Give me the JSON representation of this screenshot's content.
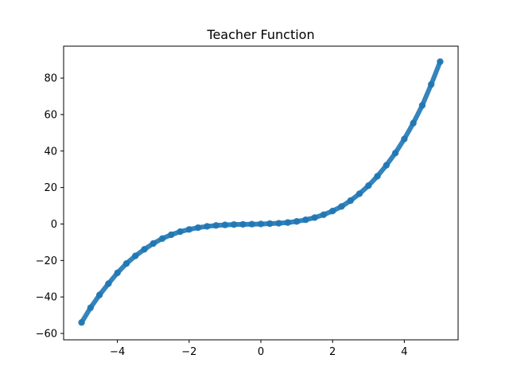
{
  "chart_data": {
    "type": "scatter",
    "title": "Teacher Function",
    "xlabel": "",
    "ylabel": "",
    "xlim": [
      -5.5,
      5.5
    ],
    "ylim": [
      -63.5,
      97.5
    ],
    "x_ticks": [
      -4,
      -2,
      0,
      2,
      4
    ],
    "y_ticks": [
      -60,
      -40,
      -20,
      0,
      20,
      40,
      60,
      80
    ],
    "x_tick_labels": [
      "−4",
      "−2",
      "0",
      "2",
      "4"
    ],
    "y_tick_labels": [
      "−60",
      "−40",
      "−20",
      "0",
      "20",
      "40",
      "60",
      "80"
    ],
    "grid": false,
    "legend": "none",
    "marker_color": "#1f77b4",
    "series": [
      {
        "x": [
          -5.0,
          -4.75,
          -4.5,
          -4.25,
          -4.0,
          -3.75,
          -3.5,
          -3.25,
          -3.0,
          -2.75,
          -2.5,
          -2.25,
          -2.0,
          -1.75,
          -1.5,
          -1.25,
          -1.0,
          -0.75,
          -0.5,
          -0.25,
          0.0,
          0.25,
          0.5,
          0.75,
          1.0,
          1.25,
          1.5,
          1.75,
          2.0,
          2.25,
          2.5,
          2.75,
          3.0,
          3.25,
          3.5,
          3.75,
          4.0,
          4.25,
          4.5,
          4.75,
          5.0
        ],
        "y": [
          -54.0,
          -45.9,
          -38.9,
          -32.7,
          -26.8,
          -21.7,
          -17.5,
          -13.9,
          -10.7,
          -8.0,
          -5.9,
          -4.2,
          -3.0,
          -2.0,
          -1.3,
          -0.8,
          -0.5,
          -0.3,
          -0.2,
          -0.1,
          0.0,
          0.2,
          0.4,
          0.8,
          1.4,
          2.3,
          3.5,
          5.1,
          7.1,
          9.6,
          12.8,
          16.6,
          21.0,
          26.2,
          32.2,
          38.9,
          46.6,
          55.3,
          65.0,
          76.5,
          89.0
        ]
      }
    ]
  }
}
